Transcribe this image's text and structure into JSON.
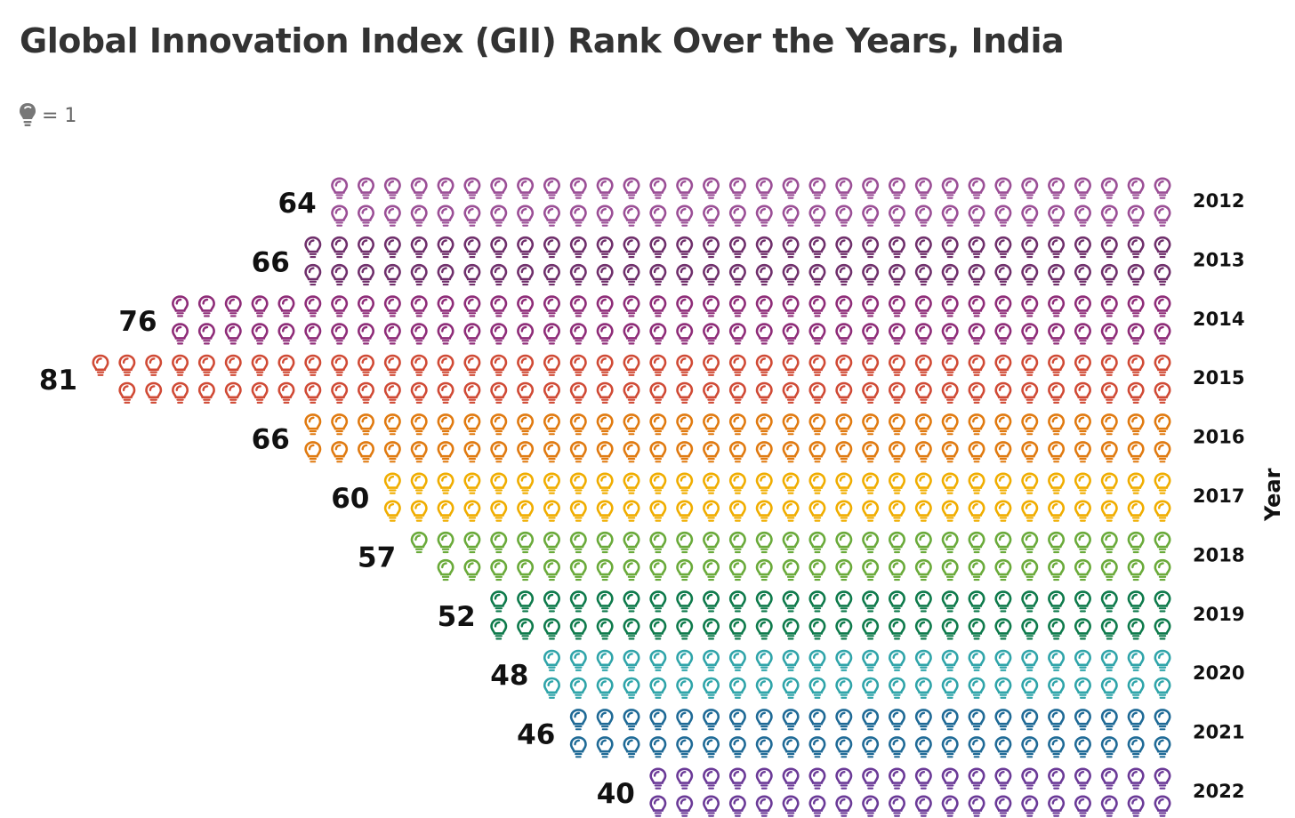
{
  "title": "Global Innovation Index (GII) Rank Over the Years, India",
  "legend": {
    "icon": "lightbulb-icon",
    "text": "= 1",
    "color": "#666666"
  },
  "chart_data": {
    "type": "pictograph",
    "title": "Global Innovation Index (GII) Rank Over the Years, India",
    "ylabel": "Year",
    "unit_per_icon": 1,
    "icon": "lightbulb-icon",
    "categories": [
      "2012",
      "2013",
      "2014",
      "2015",
      "2016",
      "2017",
      "2018",
      "2019",
      "2020",
      "2021",
      "2022"
    ],
    "values": [
      64,
      66,
      76,
      81,
      66,
      60,
      57,
      52,
      48,
      46,
      40
    ],
    "colors": [
      "#9B4F96",
      "#6F2F6B",
      "#8E2C78",
      "#D04A35",
      "#E07A10",
      "#F0AD00",
      "#6AAA3A",
      "#0E7A4B",
      "#2FA4A9",
      "#1F6A96",
      "#6B3A97"
    ]
  }
}
